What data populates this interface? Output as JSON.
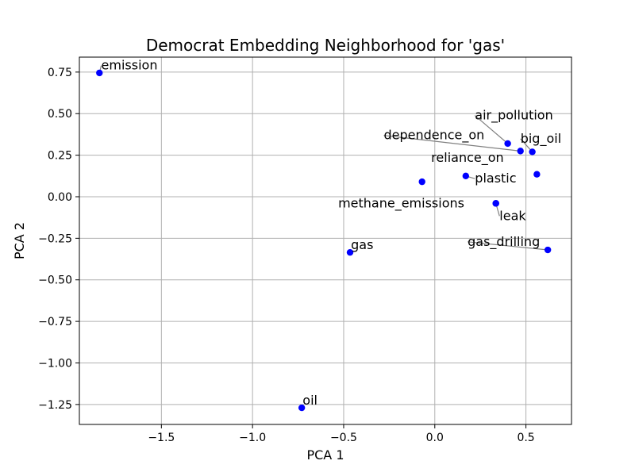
{
  "chart_data": {
    "type": "scatter",
    "title": "Democrat Embedding Neighborhood for 'gas'",
    "xlabel": "PCA 1",
    "ylabel": "PCA 2",
    "xlim": [
      -1.95,
      0.75
    ],
    "ylim": [
      -1.37,
      0.84
    ],
    "xticks": [
      -1.5,
      -1.0,
      -0.5,
      0.0,
      0.5
    ],
    "xtick_labels": [
      "−1.5",
      "−1.0",
      "−0.5",
      "0.0",
      "0.5"
    ],
    "yticks": [
      0.75,
      0.5,
      0.25,
      0.0,
      -0.25,
      -0.5,
      -0.75,
      -1.0,
      -1.25
    ],
    "ytick_labels": [
      "0.75",
      "0.50",
      "0.25",
      "0.00",
      "−0.25",
      "−0.50",
      "−0.75",
      "−1.00",
      "−1.25"
    ],
    "grid": true,
    "point_color": "#0000ff",
    "leader_color": "#808080",
    "points": [
      {
        "label": "emission",
        "x": -1.84,
        "y": 0.745,
        "lx": -1.83,
        "ly": 0.765,
        "anchor": "start",
        "leader": true
      },
      {
        "label": "air_pollution",
        "x": 0.4,
        "y": 0.32,
        "lx": 0.22,
        "ly": 0.465,
        "anchor": "start",
        "leader": true
      },
      {
        "label": "big_oil",
        "x": 0.535,
        "y": 0.27,
        "lx": 0.47,
        "ly": 0.325,
        "anchor": "start",
        "leader": true
      },
      {
        "label": "dependence_on",
        "x": 0.47,
        "y": 0.275,
        "lx": -0.28,
        "ly": 0.345,
        "anchor": "start",
        "leader": true
      },
      {
        "label": "reliance_on",
        "x": -0.07,
        "y": 0.09,
        "lx": -0.02,
        "ly": 0.21,
        "anchor": "start",
        "leader": false
      },
      {
        "label": "plastic",
        "x": 0.17,
        "y": 0.125,
        "lx": 0.22,
        "ly": 0.085,
        "anchor": "start",
        "leader": true
      },
      {
        "label": "",
        "x": 0.56,
        "y": 0.135,
        "lx": 0.56,
        "ly": 0.135,
        "anchor": "start",
        "leader": false
      },
      {
        "label": "methane_emissions",
        "x": 0.335,
        "y": -0.04,
        "lx": -0.53,
        "ly": -0.065,
        "anchor": "start",
        "leader": false
      },
      {
        "label": "leak",
        "x": 0.335,
        "y": -0.04,
        "lx": 0.355,
        "ly": -0.14,
        "anchor": "start",
        "leader": true
      },
      {
        "label": "gas_drilling",
        "x": 0.62,
        "y": -0.32,
        "lx": 0.18,
        "ly": -0.295,
        "anchor": "start",
        "leader": true
      },
      {
        "label": "gas",
        "x": -0.465,
        "y": -0.335,
        "lx": -0.46,
        "ly": -0.315,
        "anchor": "start",
        "leader": false
      },
      {
        "label": "oil",
        "x": -0.73,
        "y": -1.27,
        "lx": -0.725,
        "ly": -1.25,
        "anchor": "start",
        "leader": false
      }
    ]
  }
}
